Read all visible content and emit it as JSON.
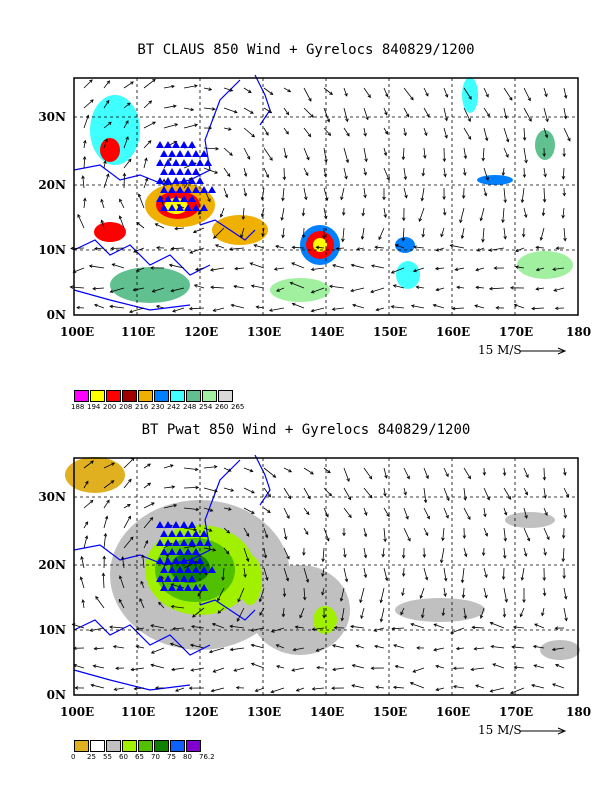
{
  "panels": [
    {
      "title": "BT CLAUS 850 Wind + Gyrelocs 840829/1200",
      "xticks": [
        "100E",
        "110E",
        "120E",
        "130E",
        "140E",
        "150E",
        "160E",
        "170E",
        "180"
      ],
      "yticks": [
        "30N",
        "20N",
        "10N",
        "0N"
      ],
      "scale_label": "15 M/S",
      "legend": {
        "colors": [
          "#ff00ff",
          "#ffff00",
          "#ff0000",
          "#a00000",
          "#f0b000",
          "#0080ff",
          "#40ffff",
          "#60c090",
          "#a0f0a0",
          "#d8d8d8"
        ],
        "labels": [
          "188",
          "194",
          "200",
          "208",
          "216",
          "230",
          "242",
          "248",
          "254",
          "260",
          "265"
        ]
      }
    },
    {
      "title": "BT Pwat 850 Wind + Gyrelocs 840829/1200",
      "xticks": [
        "100E",
        "110E",
        "120E",
        "130E",
        "140E",
        "150E",
        "160E",
        "170E",
        "180"
      ],
      "yticks": [
        "30N",
        "20N",
        "10N",
        "0N"
      ],
      "scale_label": "15 M/S",
      "legend": {
        "colors": [
          "#e0b020",
          "#ffffff",
          "#c0c0c0",
          "#a0f000",
          "#50c000",
          "#108000",
          "#1060ff",
          "#8000d0"
        ],
        "labels": [
          "0",
          "25",
          "55",
          "60",
          "65",
          "70",
          "75",
          "80",
          "76.2"
        ]
      }
    }
  ],
  "colors": {
    "coast": "#0000ff",
    "marker": "#0000ff",
    "vector": "#000000"
  }
}
